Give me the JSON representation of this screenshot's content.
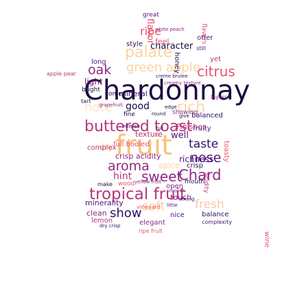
{
  "words": [
    {
      "text": "Chardonnay",
      "color": "#1b0c41"
    },
    {
      "text": "fruit",
      "color": "#f9c27c"
    },
    {
      "text": "buttered toast",
      "color": "#b5367a"
    },
    {
      "text": "tropical fruit",
      "color": "#b5367a"
    },
    {
      "text": "palate",
      "color": "#fbd3a0"
    },
    {
      "text": "green apple",
      "color": "#fbd3a0"
    },
    {
      "text": "citrus",
      "color": "#e8516e"
    },
    {
      "text": "oak",
      "color": "#8c2981"
    },
    {
      "text": "note",
      "color": "#fde2c0"
    },
    {
      "text": "rich",
      "color": "#fcd6b0"
    },
    {
      "text": "Chard",
      "color": "#8c2981"
    },
    {
      "text": "aroma",
      "color": "#8c2981"
    },
    {
      "text": "sweet",
      "color": "#8c2981"
    },
    {
      "text": "nose",
      "color": "#4f127b"
    },
    {
      "text": "taste",
      "color": "#2c115f"
    },
    {
      "text": "show",
      "color": "#2c115f"
    },
    {
      "text": "soft",
      "color": "#fbd3a0"
    },
    {
      "text": "fresh",
      "color": "#fcc4a8"
    },
    {
      "text": "ripe",
      "color": "#e8516e"
    },
    {
      "text": "good",
      "color": "#1b0c41"
    },
    {
      "text": "character",
      "color": "#1b0c41"
    },
    {
      "text": "hint",
      "color": "#b5367a"
    },
    {
      "text": "light",
      "color": "#6a176e"
    },
    {
      "text": "richness",
      "color": "#4f127b"
    },
    {
      "text": "well",
      "color": "#4f127b"
    },
    {
      "text": "mineral",
      "color": "#2c115f"
    },
    {
      "text": "spice",
      "color": "#fbd3a0"
    },
    {
      "text": "crisp acidity",
      "color": "#8c2981"
    },
    {
      "text": "texture",
      "color": "#b5367a"
    },
    {
      "text": "Finishes",
      "color": "#b5367a"
    },
    {
      "text": "full bodied",
      "color": "#e8516e"
    },
    {
      "text": "balanced",
      "color": "#2c115f"
    },
    {
      "text": "fruity",
      "color": "#4f127b"
    },
    {
      "text": "honey",
      "color": "#2c115f"
    },
    {
      "text": "flavor",
      "color": "#e8516e"
    },
    {
      "text": "feel",
      "color": "#e8516e"
    },
    {
      "text": "style",
      "color": "#2c115f"
    },
    {
      "text": "long",
      "color": "#4f127b"
    },
    {
      "text": "come",
      "color": "#1b0c41"
    },
    {
      "text": "bright",
      "color": "#1b0c41"
    },
    {
      "text": "apple pear",
      "color": "#b5367a"
    },
    {
      "text": "fine",
      "color": "#1b0c41"
    },
    {
      "text": "dry",
      "color": "#f9c27c"
    },
    {
      "text": "complex",
      "color": "#b5367a"
    },
    {
      "text": "crisp",
      "color": "#2c115f"
    },
    {
      "text": "mouth",
      "color": "#2c115f"
    },
    {
      "text": "wood",
      "color": "#e8516e"
    },
    {
      "text": "make",
      "color": "#1b0c41"
    },
    {
      "text": "open",
      "color": "#8c2981"
    },
    {
      "text": "touch",
      "color": "#8c2981"
    },
    {
      "text": "minerality",
      "color": "#4f127b"
    },
    {
      "text": "clean",
      "color": "#8c2981"
    },
    {
      "text": "lemon",
      "color": "#b5367a"
    },
    {
      "text": "nice",
      "color": "#4f127b"
    },
    {
      "text": "elegant",
      "color": "#8c2981"
    },
    {
      "text": "balance",
      "color": "#2c115f"
    },
    {
      "text": "complexity",
      "color": "#4f127b"
    },
    {
      "text": "vineyard",
      "color": "#e8516e"
    },
    {
      "text": "strong",
      "color": "#2c115f"
    },
    {
      "text": "showing",
      "color": "#8c2981"
    },
    {
      "text": "offer",
      "color": "#4f127b"
    },
    {
      "text": "great",
      "color": "#4f127b"
    },
    {
      "text": "creme brulee",
      "color": "#2c115f"
    },
    {
      "text": "round",
      "color": "#1b0c41"
    },
    {
      "text": "intense",
      "color": "#2c115f"
    },
    {
      "text": "yellow fruit",
      "color": "#8c2981"
    },
    {
      "text": "ripe fruit",
      "color": "#e8516e"
    },
    {
      "text": "dry crisp",
      "color": "#2c115f"
    },
    {
      "text": "wine",
      "color": "#e8516e"
    },
    {
      "text": "toasty",
      "color": "#e8516e"
    },
    {
      "text": "full",
      "color": "#1b0c41"
    },
    {
      "text": "give",
      "color": "#1b0c41"
    },
    {
      "text": "tart",
      "color": "#1b0c41"
    },
    {
      "text": "yet",
      "color": "#b5367a"
    },
    {
      "text": "grapefruit",
      "color": "#8c2981"
    },
    {
      "text": "creamy texture",
      "color": "#8c2981"
    },
    {
      "text": "white peach",
      "color": "#8c2981"
    },
    {
      "text": "little",
      "color": "#4f127b"
    },
    {
      "text": "smooth",
      "color": "#8c2981"
    },
    {
      "text": "edge",
      "color": "#1b0c41"
    },
    {
      "text": "still",
      "color": "#4f127b"
    },
    {
      "text": "acidity",
      "color": "#b5367a"
    },
    {
      "text": "flavors",
      "color": "#e8516e"
    },
    {
      "text": "layers",
      "color": "#8c2981"
    }
  ]
}
